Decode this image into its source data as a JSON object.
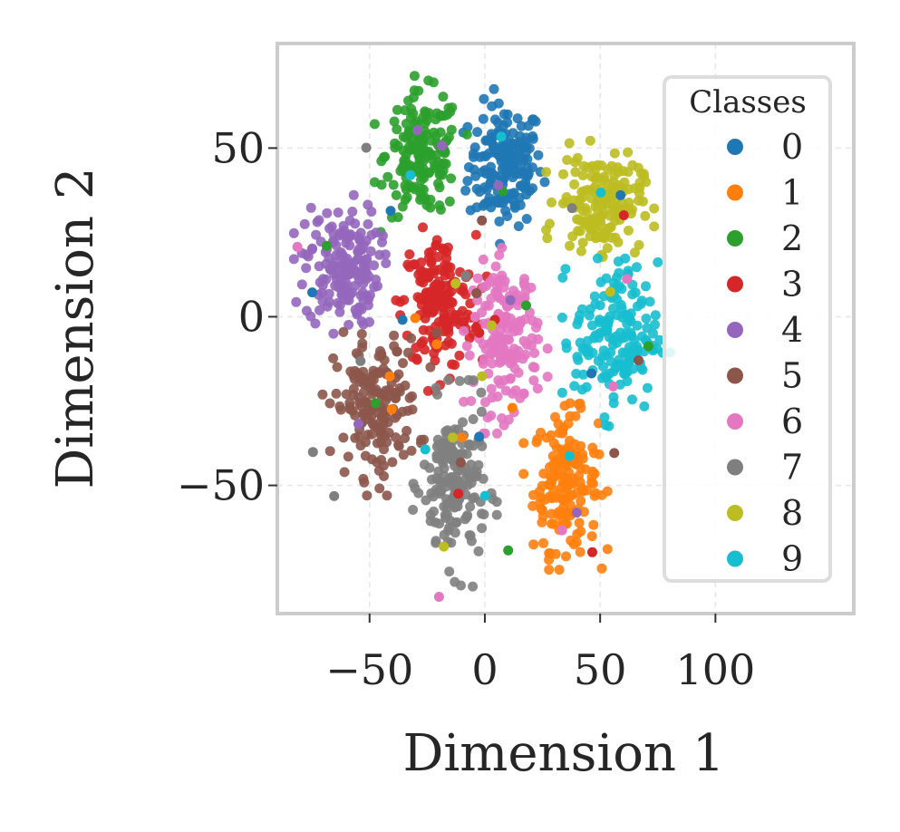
{
  "chart_data": {
    "type": "scatter",
    "title": "",
    "xlabel": "Dimension 1",
    "ylabel": "Dimension 2",
    "xlim": [
      -90,
      160
    ],
    "ylim": [
      -88,
      81
    ],
    "xticks": [
      -50,
      0,
      50,
      100
    ],
    "yticks": [
      -50,
      0,
      50
    ],
    "xtick_labels": [
      "−50",
      "0",
      "50",
      "100"
    ],
    "ytick_labels": [
      "−50",
      "0",
      "50"
    ],
    "grid": true,
    "legend": {
      "title": "Classes",
      "position": "right"
    },
    "series": [
      {
        "name": "0",
        "color": "#1f77b4",
        "center": [
          9,
          45
        ],
        "spread": [
          8,
          9
        ],
        "count": 170
      },
      {
        "name": "1",
        "color": "#ff7f0e",
        "center": [
          35,
          -49
        ],
        "spread": [
          7,
          10
        ],
        "count": 170
      },
      {
        "name": "2",
        "color": "#2ca02c",
        "center": [
          -27,
          48
        ],
        "spread": [
          8,
          9
        ],
        "count": 170
      },
      {
        "name": "3",
        "color": "#d62728",
        "center": [
          -20,
          4
        ],
        "spread": [
          8,
          10
        ],
        "count": 170
      },
      {
        "name": "4",
        "color": "#9467bd",
        "center": [
          -62,
          15
        ],
        "spread": [
          8,
          9
        ],
        "count": 170
      },
      {
        "name": "5",
        "color": "#8c564b",
        "center": [
          -47,
          -27
        ],
        "spread": [
          9,
          10
        ],
        "count": 170
      },
      {
        "name": "6",
        "color": "#e377c2",
        "center": [
          9,
          -6
        ],
        "spread": [
          7,
          11
        ],
        "count": 170
      },
      {
        "name": "7",
        "color": "#7f7f7f",
        "center": [
          -13,
          -50
        ],
        "spread": [
          7,
          12
        ],
        "count": 170
      },
      {
        "name": "8",
        "color": "#bcbd22",
        "center": [
          50,
          34
        ],
        "spread": [
          9,
          7
        ],
        "count": 170
      },
      {
        "name": "9",
        "color": "#17becf",
        "center": [
          57,
          -6
        ],
        "spread": [
          9,
          11
        ],
        "count": 170
      }
    ]
  }
}
